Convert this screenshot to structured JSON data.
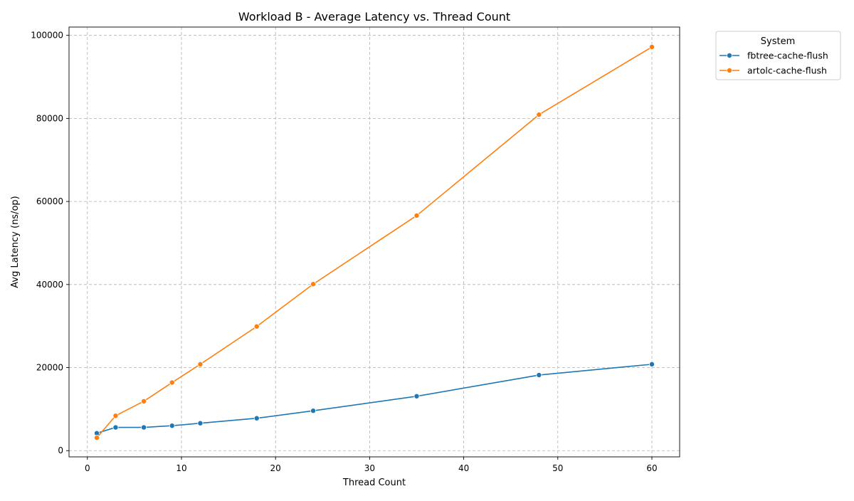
{
  "chart_data": {
    "type": "line",
    "title": "Workload B - Average Latency vs. Thread Count",
    "xlabel": "Thread Count",
    "ylabel": "Avg Latency (ns/op)",
    "xlim": [
      -1.95,
      62.95
    ],
    "ylim": [
      -1500,
      102000
    ],
    "xticks": [
      0,
      10,
      20,
      30,
      40,
      50,
      60
    ],
    "yticks": [
      0,
      20000,
      40000,
      60000,
      80000,
      100000
    ],
    "grid": true,
    "legend": {
      "title": "System",
      "placement": "outside-top-right"
    },
    "series": [
      {
        "name": "fbtree-cache-flush",
        "color": "#1f77b4",
        "x": [
          1,
          3,
          6,
          9,
          12,
          18,
          24,
          35,
          48,
          60
        ],
        "y": [
          4200,
          5600,
          5600,
          6000,
          6600,
          7800,
          9600,
          13100,
          18200,
          20800
        ]
      },
      {
        "name": "artolc-cache-flush",
        "color": "#ff7f0e",
        "x": [
          1,
          3,
          6,
          9,
          12,
          18,
          24,
          35,
          48,
          60
        ],
        "y": [
          3100,
          8400,
          11900,
          16400,
          20800,
          29900,
          40100,
          56600,
          80900,
          97200
        ]
      }
    ]
  }
}
